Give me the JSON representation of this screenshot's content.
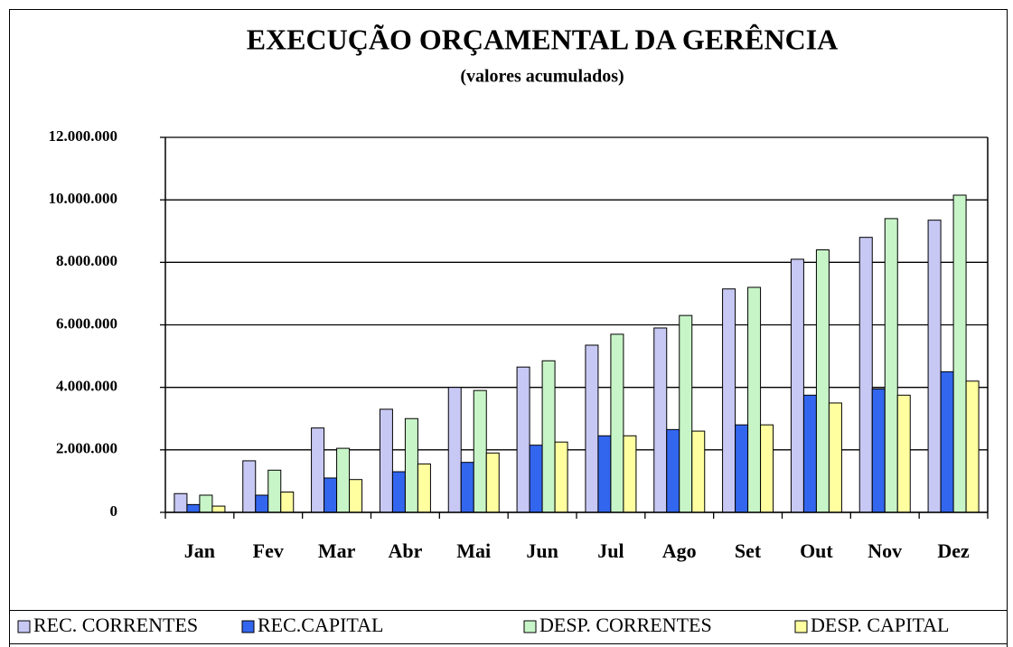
{
  "chart_data": {
    "type": "bar",
    "title": "EXECUÇÃO ORÇAMENTAL DA GERÊNCIA",
    "subtitle": "(valores acumulados)",
    "categories": [
      "Jan",
      "Fev",
      "Mar",
      "Abr",
      "Mai",
      "Jun",
      "Jul",
      "Ago",
      "Set",
      "Out",
      "Nov",
      "Dez"
    ],
    "series": [
      {
        "name": "REC. CORRENTES",
        "color": "#c8c8f5",
        "values": [
          600000,
          1650000,
          2700000,
          3300000,
          4000000,
          4650000,
          5350000,
          5900000,
          7150000,
          8100000,
          8800000,
          9350000
        ]
      },
      {
        "name": "REC.CAPITAL",
        "color": "#3366ee",
        "values": [
          250000,
          550000,
          1100000,
          1300000,
          1600000,
          2150000,
          2450000,
          2650000,
          2800000,
          3750000,
          3950000,
          4500000
        ]
      },
      {
        "name": "DESP. CORRENTES",
        "color": "#c8f5c8",
        "values": [
          550000,
          1350000,
          2050000,
          3000000,
          3900000,
          4850000,
          5700000,
          6300000,
          7200000,
          8400000,
          9400000,
          10150000
        ]
      },
      {
        "name": "DESP. CAPITAL",
        "color": "#ffffa0",
        "values": [
          200000,
          650000,
          1050000,
          1550000,
          1900000,
          2250000,
          2450000,
          2600000,
          2800000,
          3500000,
          3750000,
          4200000
        ]
      }
    ],
    "ylim": [
      0,
      12000000
    ],
    "yticks": [
      0,
      {
        "value": 2000000,
        "label": "2.000.000"
      },
      {
        "value": 4000000,
        "label": "4.000.000"
      },
      {
        "value": 6000000,
        "label": "6.000.000"
      },
      {
        "value": 8000000,
        "label": "8.000.000"
      },
      {
        "value": 10000000,
        "label": "10.000.000"
      },
      {
        "value": 12000000,
        "label": "12.000.000"
      }
    ],
    "grid": true,
    "legend": "bottom"
  }
}
